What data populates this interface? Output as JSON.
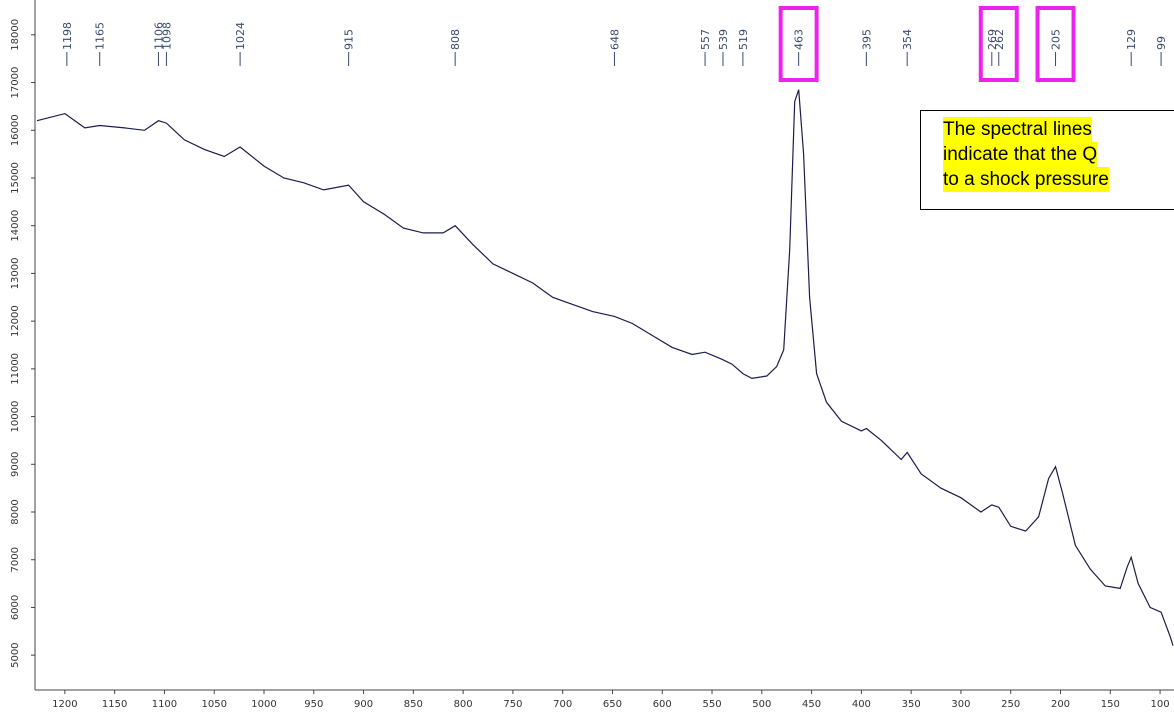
{
  "chart_data": {
    "type": "line",
    "x": [
      1228,
      1200,
      1180,
      1165,
      1140,
      1120,
      1106,
      1098,
      1080,
      1060,
      1040,
      1024,
      1000,
      980,
      960,
      940,
      915,
      900,
      880,
      860,
      840,
      820,
      808,
      790,
      770,
      750,
      730,
      710,
      690,
      670,
      648,
      630,
      610,
      590,
      570,
      557,
      540,
      530,
      519,
      510,
      495,
      485,
      478,
      472,
      467,
      463,
      458,
      452,
      445,
      435,
      420,
      400,
      395,
      380,
      360,
      354,
      340,
      320,
      300,
      280,
      269,
      262,
      250,
      235,
      222,
      212,
      205,
      198,
      185,
      170,
      155,
      140,
      133,
      129,
      122,
      110,
      99,
      90,
      87
    ],
    "values": [
      16200,
      16350,
      16050,
      16100,
      16050,
      16000,
      16200,
      16150,
      15800,
      15600,
      15450,
      15650,
      15250,
      15000,
      14900,
      14750,
      14850,
      14500,
      14250,
      13950,
      13850,
      13850,
      14000,
      13600,
      13200,
      13000,
      12800,
      12500,
      12350,
      12200,
      12100,
      11950,
      11700,
      11450,
      11300,
      11350,
      11200,
      11100,
      10900,
      10800,
      10850,
      11050,
      11400,
      13500,
      16600,
      16850,
      15500,
      12500,
      10900,
      10300,
      9900,
      9700,
      9750,
      9500,
      9100,
      9250,
      8800,
      8500,
      8300,
      8000,
      8150,
      8100,
      7700,
      7600,
      7900,
      8700,
      8950,
      8400,
      7300,
      6800,
      6450,
      6400,
      6850,
      7050,
      6500,
      6000,
      5900,
      5400,
      5200
    ],
    "color": "#1c1c4e",
    "xlim": [
      1230,
      85
    ],
    "xticks": [
      1200,
      1150,
      1100,
      1050,
      1000,
      950,
      900,
      850,
      800,
      750,
      700,
      650,
      600,
      550,
      500,
      450,
      400,
      350,
      300,
      250,
      200,
      150,
      100
    ],
    "ylim": [
      4270,
      18730
    ],
    "yticks": [
      5000,
      6000,
      7000,
      8000,
      9000,
      10000,
      11000,
      12000,
      13000,
      14000,
      15000,
      16000,
      17000,
      18000
    ],
    "peak_labels": [
      1198,
      1165,
      1106,
      1098,
      1024,
      915,
      808,
      648,
      557,
      539,
      519,
      463,
      395,
      354,
      269,
      262,
      205,
      129,
      99
    ],
    "highlighted_peaks": [
      463,
      262,
      205
    ],
    "highlight_color": "#ee22ee",
    "annotation": [
      "The spectral lines",
      "indicate that the Q",
      "to a shock pressure"
    ]
  }
}
